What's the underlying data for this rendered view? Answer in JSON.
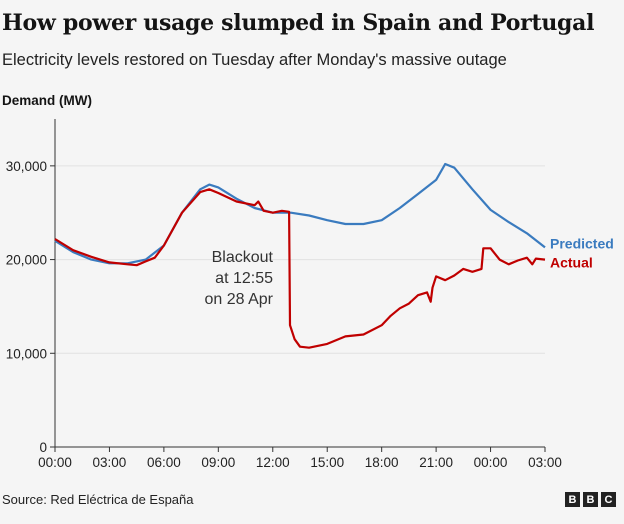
{
  "title": "How power usage slumped in Spain and Portugal",
  "subtitle": "Electricity levels restored on Tuesday after Monday's massive outage",
  "source": "Source: Red Eléctrica de España",
  "logo": "BBC",
  "chart_data": {
    "type": "line",
    "ylabel": "Demand (MW)",
    "ylim": [
      0,
      35000
    ],
    "yticks": [
      0,
      10000,
      20000,
      30000
    ],
    "ytick_labels": [
      "0",
      "10,000",
      "20,000",
      "30,000"
    ],
    "xlim_hours": [
      0,
      27
    ],
    "xticks": [
      "00:00",
      "03:00",
      "06:00",
      "09:00",
      "12:00",
      "15:00",
      "18:00",
      "21:00",
      "00:00",
      "03:00"
    ],
    "grid": "horizontal",
    "annotation": {
      "lines": [
        "Blackout",
        "at 12:55",
        "on 28 Apr"
      ]
    },
    "series": [
      {
        "name": "Predicted",
        "color": "#3a7bbf",
        "x": [
          "00:00",
          "01:00",
          "02:00",
          "03:00",
          "04:00",
          "05:00",
          "06:00",
          "07:00",
          "08:00",
          "08:30",
          "09:00",
          "10:00",
          "11:00",
          "12:00",
          "13:00",
          "14:00",
          "15:00",
          "16:00",
          "17:00",
          "18:00",
          "19:00",
          "20:00",
          "21:00",
          "21:30",
          "22:00",
          "23:00",
          "00:00",
          "01:00",
          "02:00",
          "03:00"
        ],
        "values": [
          22000,
          20800,
          20000,
          19600,
          19600,
          20000,
          21500,
          25000,
          27500,
          28000,
          27700,
          26500,
          25500,
          25000,
          25000,
          24700,
          24200,
          23800,
          23800,
          24200,
          25500,
          27000,
          28500,
          30200,
          29800,
          27500,
          25300,
          24000,
          22800,
          21300
        ]
      },
      {
        "name": "Actual",
        "color": "#c00000",
        "x": [
          "00:00",
          "01:00",
          "02:00",
          "03:00",
          "04:00",
          "04:30",
          "05:00",
          "05:30",
          "06:00",
          "07:00",
          "08:00",
          "08:30",
          "09:00",
          "10:00",
          "11:00",
          "11:12",
          "11:30",
          "12:00",
          "12:30",
          "12:54",
          "12:57",
          "13:12",
          "13:30",
          "14:00",
          "15:00",
          "16:00",
          "17:00",
          "18:00",
          "18:30",
          "19:00",
          "19:30",
          "20:00",
          "20:30",
          "20:42",
          "20:48",
          "21:00",
          "21:30",
          "22:00",
          "22:30",
          "23:00",
          "23:30",
          "23:36",
          "00:00",
          "00:30",
          "01:00",
          "01:30",
          "02:00",
          "02:18",
          "02:30",
          "03:00"
        ],
        "values": [
          22200,
          21000,
          20300,
          19700,
          19500,
          19400,
          19800,
          20200,
          21500,
          25000,
          27200,
          27500,
          27100,
          26200,
          25800,
          26200,
          25200,
          25000,
          25200,
          25100,
          13000,
          11500,
          10700,
          10600,
          11000,
          11800,
          12000,
          13000,
          14000,
          14800,
          15300,
          16200,
          16500,
          15500,
          17000,
          18200,
          17800,
          18300,
          19000,
          18700,
          19000,
          21200,
          21200,
          20000,
          19500,
          19900,
          20200,
          19500,
          20100,
          20000
        ]
      }
    ]
  }
}
